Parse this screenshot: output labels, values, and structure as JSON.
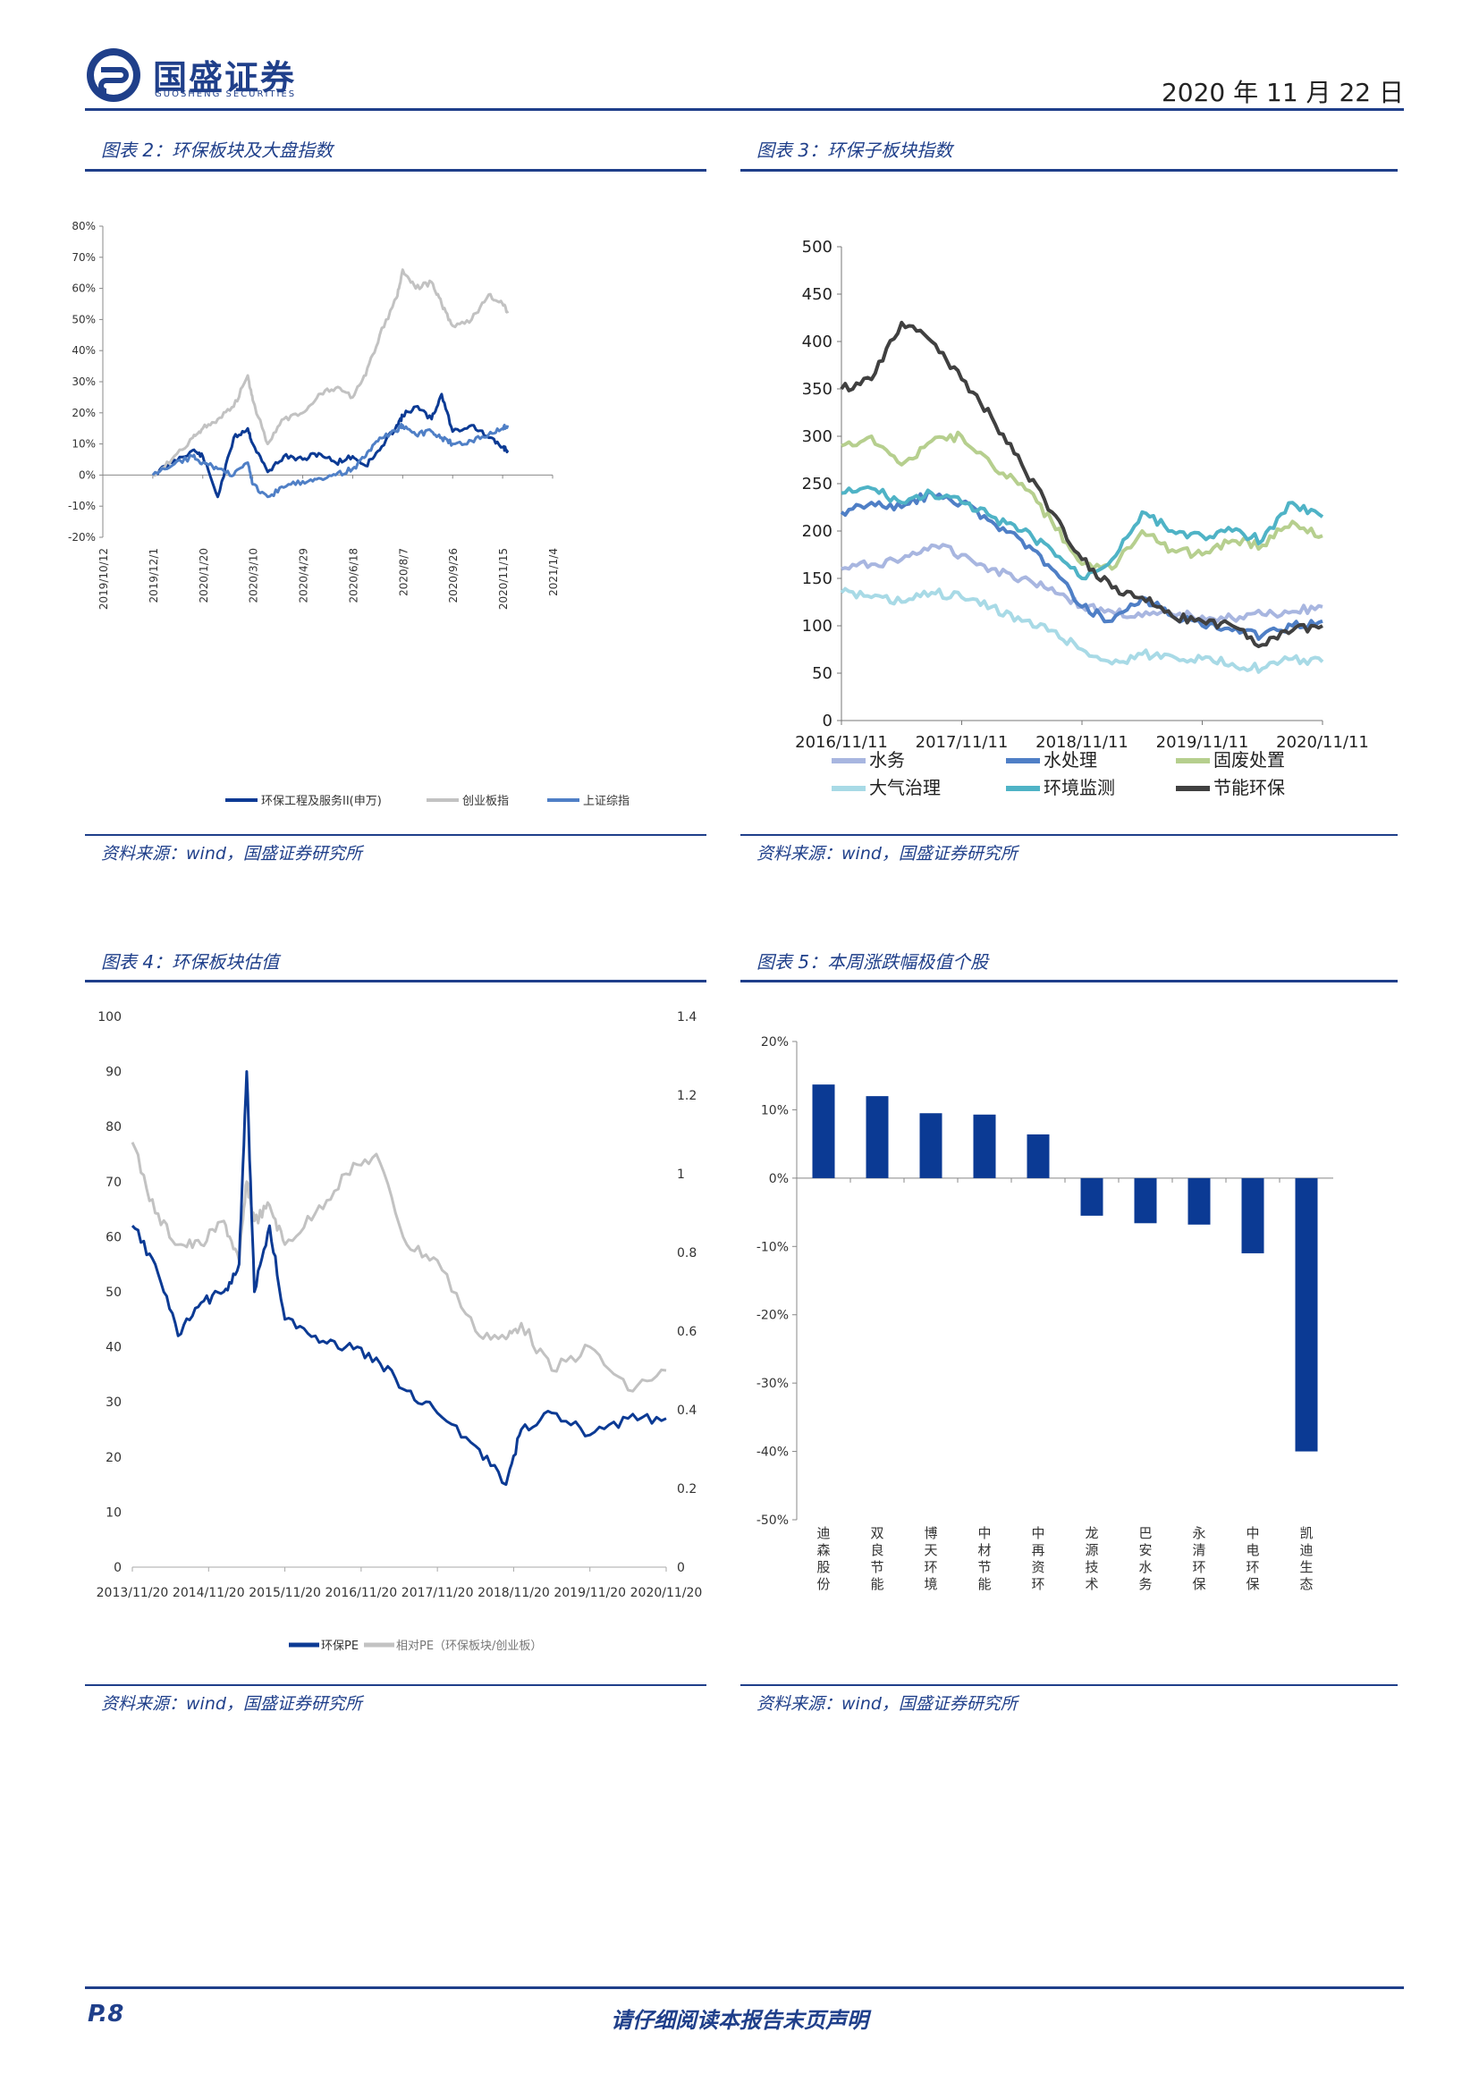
{
  "header": {
    "logo_cn": "国盛证券",
    "logo_en": "GUOSHENG SECURITIES",
    "date": "2020 年 11 月 22 日"
  },
  "footer": {
    "page": "P.8",
    "notice": "请仔细阅读本报告末页声明"
  },
  "colors": {
    "brand": "#1f3f8a",
    "dark_navy": "#0b3a94",
    "gray": "#c2c2c2",
    "mid_blue": "#4f7fc6",
    "bar": "#0b3a94"
  },
  "figures": [
    {
      "caption": "图表 2：环保板块及大盘指数",
      "source": "资料来源：wind，国盛证券研究所"
    },
    {
      "caption": "图表 3：环保子板块指数",
      "source": "资料来源：wind，国盛证券研究所"
    },
    {
      "caption": "图表 4：环保板块估值",
      "source": "资料来源：wind，国盛证券研究所"
    },
    {
      "caption": "图表 5：本周涨跌幅极值个股",
      "source": "资料来源：wind，国盛证券研究所"
    }
  ],
  "chart_data": [
    {
      "type": "line",
      "title": "",
      "ylim": [
        -0.2,
        0.8
      ],
      "yticks": [
        "-20%",
        "-10%",
        "0%",
        "10%",
        "20%",
        "30%",
        "40%",
        "50%",
        "60%",
        "70%",
        "80%"
      ],
      "xticks": [
        "2019/10/12",
        "2019/12/1",
        "2020/1/20",
        "2020/3/10",
        "2020/4/29",
        "2020/6/18",
        "2020/8/7",
        "2020/9/26",
        "2020/11/15",
        "2021/1/4"
      ],
      "legend_position": "bottom",
      "x_dates": [
        "2019/12/1",
        "2019/12/20",
        "2020/1/10",
        "2020/1/20",
        "2020/2/4",
        "2020/2/20",
        "2020/3/5",
        "2020/3/10",
        "2020/3/25",
        "2020/4/10",
        "2020/4/29",
        "2020/5/15",
        "2020/6/1",
        "2020/6/18",
        "2020/7/1",
        "2020/7/15",
        "2020/8/1",
        "2020/8/7",
        "2020/8/20",
        "2020/9/5",
        "2020/9/15",
        "2020/9/26",
        "2020/10/15",
        "2020/11/1",
        "2020/11/15",
        "2020/11/20"
      ],
      "series": [
        {
          "name": "环保工程及服务II(申万)",
          "color": "#0b3a94",
          "values": [
            0.0,
            0.04,
            0.08,
            0.06,
            -0.07,
            0.12,
            0.15,
            0.1,
            0.01,
            0.06,
            0.05,
            0.07,
            0.04,
            0.06,
            0.03,
            0.08,
            0.16,
            0.19,
            0.22,
            0.18,
            0.26,
            0.14,
            0.16,
            0.12,
            0.09,
            0.08
          ]
        },
        {
          "name": "创业板指",
          "color": "#c2c2c2",
          "values": [
            0.0,
            0.05,
            0.12,
            0.15,
            0.18,
            0.22,
            0.32,
            0.24,
            0.1,
            0.18,
            0.2,
            0.26,
            0.28,
            0.25,
            0.32,
            0.45,
            0.57,
            0.66,
            0.6,
            0.62,
            0.55,
            0.48,
            0.5,
            0.58,
            0.55,
            0.52
          ]
        },
        {
          "name": "上证综指",
          "color": "#4f7fc6",
          "values": [
            0.0,
            0.03,
            0.06,
            0.04,
            0.02,
            0.0,
            0.04,
            -0.03,
            -0.07,
            -0.04,
            -0.02,
            -0.01,
            0.0,
            0.02,
            0.06,
            0.12,
            0.14,
            0.16,
            0.13,
            0.14,
            0.12,
            0.1,
            0.11,
            0.13,
            0.15,
            0.16
          ]
        }
      ]
    },
    {
      "type": "line",
      "title": "",
      "ylim": [
        0,
        500
      ],
      "yticks": [
        "0",
        "50",
        "100",
        "150",
        "200",
        "250",
        "300",
        "350",
        "400",
        "450",
        "500"
      ],
      "xticks": [
        "2016/11/11",
        "2017/11/11",
        "2018/11/11",
        "2019/11/11",
        "2020/11/11"
      ],
      "legend_position": "bottom",
      "x_years": [
        0,
        0.25,
        0.5,
        0.75,
        1,
        1.25,
        1.5,
        1.75,
        2,
        2.25,
        2.5,
        2.75,
        3,
        3.25,
        3.5,
        3.75,
        4
      ],
      "series": [
        {
          "name": "水务",
          "color": "#a8b6e0",
          "values": [
            160,
            165,
            170,
            185,
            175,
            160,
            150,
            140,
            120,
            115,
            110,
            112,
            110,
            108,
            112,
            115,
            120
          ]
        },
        {
          "name": "水处理",
          "color": "#4f7fc6",
          "values": [
            220,
            230,
            225,
            240,
            230,
            210,
            190,
            160,
            120,
            105,
            130,
            110,
            100,
            95,
            90,
            100,
            105
          ]
        },
        {
          "name": "固废处置",
          "color": "#b6cf8e",
          "values": [
            290,
            300,
            270,
            295,
            300,
            270,
            250,
            210,
            165,
            160,
            200,
            180,
            175,
            190,
            185,
            210,
            195
          ]
        },
        {
          "name": "大气治理",
          "color": "#a8dae6",
          "values": [
            135,
            130,
            125,
            135,
            130,
            120,
            105,
            95,
            75,
            60,
            70,
            68,
            65,
            60,
            55,
            65,
            62
          ]
        },
        {
          "name": "环境监测",
          "color": "#4fb3c6",
          "values": [
            240,
            245,
            230,
            240,
            230,
            215,
            200,
            180,
            150,
            170,
            220,
            200,
            195,
            200,
            190,
            230,
            215
          ]
        },
        {
          "name": "节能环保",
          "color": "#404040",
          "values": [
            350,
            360,
            420,
            400,
            360,
            320,
            270,
            220,
            170,
            140,
            130,
            110,
            105,
            100,
            80,
            95,
            100
          ]
        }
      ]
    },
    {
      "type": "line",
      "title": "",
      "ylim_left": [
        0,
        100
      ],
      "ylim_right": [
        0,
        1.4
      ],
      "yticks_left": [
        "0",
        "10",
        "20",
        "30",
        "40",
        "50",
        "60",
        "70",
        "80",
        "90",
        "100"
      ],
      "yticks_right": [
        "0",
        "0.2",
        "0.4",
        "0.6",
        "0.8",
        "1",
        "1.2",
        "1.4"
      ],
      "xticks": [
        "2013/11/20",
        "2014/11/20",
        "2015/11/20",
        "2016/11/20",
        "2017/11/20",
        "2018/11/20",
        "2019/11/20",
        "2020/11/20"
      ],
      "legend_position": "bottom",
      "x_years": [
        0,
        0.3,
        0.6,
        0.9,
        1.2,
        1.4,
        1.5,
        1.6,
        1.8,
        2.0,
        2.4,
        2.8,
        3.2,
        3.6,
        4.0,
        4.5,
        4.9,
        5.1,
        5.5,
        6.0,
        6.5,
        7.0
      ],
      "series": [
        {
          "name": "环保PE",
          "axis": "left",
          "color": "#0b3a94",
          "values": [
            62,
            55,
            42,
            48,
            50,
            55,
            90,
            50,
            62,
            45,
            42,
            40,
            38,
            32,
            28,
            22,
            15,
            25,
            28,
            24,
            27,
            27
          ]
        },
        {
          "name": "相对PE（环保板块/创业板）",
          "axis": "right",
          "color": "#c2c2c2",
          "values": [
            1.08,
            0.9,
            0.82,
            0.82,
            0.88,
            0.78,
            0.98,
            0.88,
            0.92,
            0.82,
            0.9,
            1.0,
            1.05,
            0.82,
            0.78,
            0.6,
            0.58,
            0.62,
            0.5,
            0.56,
            0.45,
            0.5
          ]
        }
      ]
    },
    {
      "type": "bar",
      "title": "",
      "ylim": [
        -0.5,
        0.2
      ],
      "yticks": [
        "-50%",
        "-40%",
        "-30%",
        "-20%",
        "-10%",
        "0%",
        "10%",
        "20%"
      ],
      "categories": [
        "迪森股份",
        "双良节能",
        "博天环境",
        "中材节能",
        "中再资环",
        "龙源技术",
        "巴安水务",
        "永清环保",
        "中电环保",
        "凯迪生态"
      ],
      "values": [
        0.137,
        0.12,
        0.095,
        0.093,
        0.064,
        -0.055,
        -0.066,
        -0.068,
        -0.11,
        -0.4
      ]
    }
  ]
}
